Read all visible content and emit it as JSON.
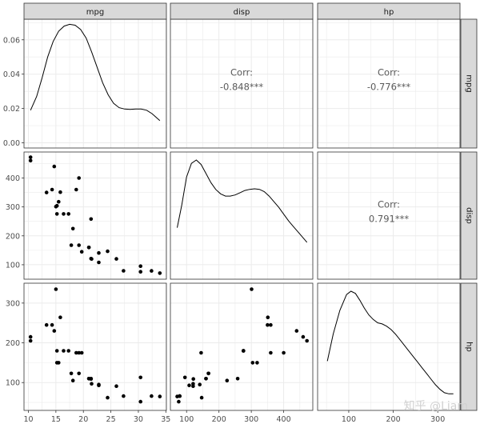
{
  "chart_data": {
    "type": "scatter",
    "variables": [
      "mpg",
      "disp",
      "hp"
    ],
    "corr_label": "Corr:",
    "correlations": [
      {
        "row": "mpg",
        "col": "disp",
        "value": "-0.848***"
      },
      {
        "row": "mpg",
        "col": "hp",
        "value": "-0.776***"
      },
      {
        "row": "disp",
        "col": "hp",
        "value": "0.791***"
      }
    ],
    "axes": {
      "mpg": {
        "range": [
          9.2,
          35.1
        ],
        "ticks": [
          10,
          15,
          20,
          25,
          30,
          35
        ]
      },
      "disp": {
        "range": [
          50,
          490
        ],
        "ticks": [
          100,
          200,
          300,
          400
        ]
      },
      "hp": {
        "range": [
          30,
          350
        ],
        "ticks": [
          100,
          200,
          300
        ]
      }
    },
    "density_axis": {
      "range": [
        -0.003,
        0.072
      ],
      "ticks": [
        "0.00",
        "0.02",
        "0.04",
        "0.06"
      ]
    },
    "density_curves": {
      "mpg": [
        [
          10.4,
          0.019
        ],
        [
          11.5,
          0.027
        ],
        [
          12.5,
          0.038
        ],
        [
          13.5,
          0.05
        ],
        [
          14.5,
          0.059
        ],
        [
          15.5,
          0.065
        ],
        [
          16.5,
          0.068
        ],
        [
          17.5,
          0.069
        ],
        [
          18.5,
          0.0685
        ],
        [
          19.5,
          0.066
        ],
        [
          20.5,
          0.061
        ],
        [
          21.5,
          0.053
        ],
        [
          22.5,
          0.044
        ],
        [
          23.5,
          0.035
        ],
        [
          24.5,
          0.028
        ],
        [
          25.5,
          0.023
        ],
        [
          26.5,
          0.0205
        ],
        [
          27.5,
          0.0197
        ],
        [
          28.5,
          0.0195
        ],
        [
          29.5,
          0.0197
        ],
        [
          30.5,
          0.0197
        ],
        [
          31.5,
          0.019
        ],
        [
          32.5,
          0.017
        ],
        [
          33.9,
          0.013
        ]
      ],
      "disp": [
        [
          71,
          0.4
        ],
        [
          85,
          0.6
        ],
        [
          100,
          0.85
        ],
        [
          115,
          0.97
        ],
        [
          130,
          1.0
        ],
        [
          145,
          0.96
        ],
        [
          160,
          0.88
        ],
        [
          175,
          0.8
        ],
        [
          190,
          0.74
        ],
        [
          205,
          0.7
        ],
        [
          220,
          0.68
        ],
        [
          235,
          0.68
        ],
        [
          250,
          0.69
        ],
        [
          265,
          0.71
        ],
        [
          280,
          0.73
        ],
        [
          295,
          0.74
        ],
        [
          310,
          0.745
        ],
        [
          325,
          0.74
        ],
        [
          340,
          0.72
        ],
        [
          355,
          0.68
        ],
        [
          370,
          0.63
        ],
        [
          385,
          0.58
        ],
        [
          400,
          0.52
        ],
        [
          415,
          0.46
        ],
        [
          430,
          0.41
        ],
        [
          445,
          0.36
        ],
        [
          460,
          0.31
        ],
        [
          472,
          0.27
        ]
      ],
      "hp": [
        [
          52,
          0.38
        ],
        [
          65,
          0.62
        ],
        [
          80,
          0.83
        ],
        [
          95,
          0.97
        ],
        [
          105,
          1.0
        ],
        [
          115,
          0.98
        ],
        [
          125,
          0.92
        ],
        [
          135,
          0.85
        ],
        [
          145,
          0.79
        ],
        [
          155,
          0.75
        ],
        [
          165,
          0.72
        ],
        [
          175,
          0.71
        ],
        [
          185,
          0.69
        ],
        [
          195,
          0.66
        ],
        [
          205,
          0.62
        ],
        [
          215,
          0.57
        ],
        [
          225,
          0.52
        ],
        [
          235,
          0.47
        ],
        [
          245,
          0.42
        ],
        [
          255,
          0.37
        ],
        [
          265,
          0.32
        ],
        [
          275,
          0.27
        ],
        [
          285,
          0.22
        ],
        [
          295,
          0.17
        ],
        [
          305,
          0.13
        ],
        [
          315,
          0.1
        ],
        [
          325,
          0.09
        ],
        [
          335,
          0.09
        ]
      ]
    },
    "points": [
      {
        "mpg": 21.0,
        "disp": 160,
        "hp": 110
      },
      {
        "mpg": 21.0,
        "disp": 160,
        "hp": 110
      },
      {
        "mpg": 22.8,
        "disp": 108,
        "hp": 93
      },
      {
        "mpg": 21.4,
        "disp": 258,
        "hp": 110
      },
      {
        "mpg": 18.7,
        "disp": 360,
        "hp": 175
      },
      {
        "mpg": 18.1,
        "disp": 225,
        "hp": 105
      },
      {
        "mpg": 14.3,
        "disp": 360,
        "hp": 245
      },
      {
        "mpg": 24.4,
        "disp": 146.7,
        "hp": 62
      },
      {
        "mpg": 22.8,
        "disp": 140.8,
        "hp": 95
      },
      {
        "mpg": 19.2,
        "disp": 167.6,
        "hp": 123
      },
      {
        "mpg": 17.8,
        "disp": 167.6,
        "hp": 123
      },
      {
        "mpg": 16.4,
        "disp": 275.8,
        "hp": 180
      },
      {
        "mpg": 17.3,
        "disp": 275.8,
        "hp": 180
      },
      {
        "mpg": 15.2,
        "disp": 275.8,
        "hp": 180
      },
      {
        "mpg": 10.4,
        "disp": 472,
        "hp": 205
      },
      {
        "mpg": 10.4,
        "disp": 460,
        "hp": 215
      },
      {
        "mpg": 14.7,
        "disp": 440,
        "hp": 230
      },
      {
        "mpg": 32.4,
        "disp": 78.7,
        "hp": 66
      },
      {
        "mpg": 30.4,
        "disp": 75.7,
        "hp": 52
      },
      {
        "mpg": 33.9,
        "disp": 71.1,
        "hp": 65
      },
      {
        "mpg": 21.5,
        "disp": 120.1,
        "hp": 97
      },
      {
        "mpg": 15.5,
        "disp": 318,
        "hp": 150
      },
      {
        "mpg": 15.2,
        "disp": 304,
        "hp": 150
      },
      {
        "mpg": 13.3,
        "disp": 350,
        "hp": 245
      },
      {
        "mpg": 19.2,
        "disp": 400,
        "hp": 175
      },
      {
        "mpg": 27.3,
        "disp": 79,
        "hp": 66
      },
      {
        "mpg": 26.0,
        "disp": 120.3,
        "hp": 91
      },
      {
        "mpg": 30.4,
        "disp": 95.1,
        "hp": 113
      },
      {
        "mpg": 15.8,
        "disp": 351,
        "hp": 264
      },
      {
        "mpg": 19.7,
        "disp": 145,
        "hp": 175
      },
      {
        "mpg": 15.0,
        "disp": 301,
        "hp": 335
      },
      {
        "mpg": 21.4,
        "disp": 121,
        "hp": 109
      }
    ]
  },
  "watermark": "知乎 @Liam",
  "colors": {
    "panel_border": "#333333",
    "strip_fill": "#d9d9d9",
    "grid": "#ebebeb",
    "point": "#000000"
  }
}
